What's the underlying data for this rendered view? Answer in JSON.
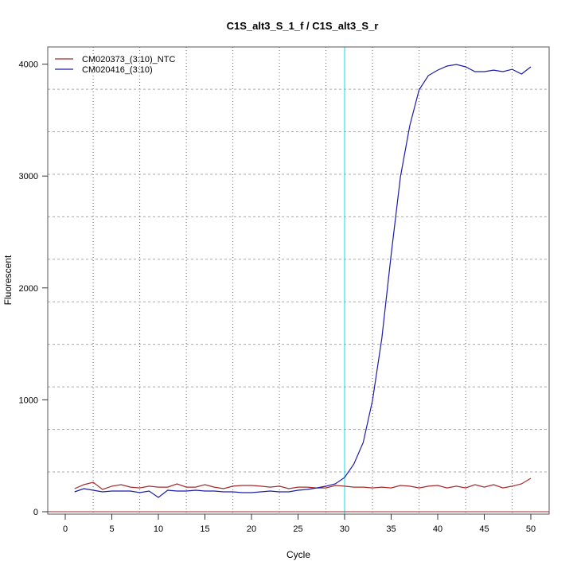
{
  "chart_data": {
    "type": "line",
    "title": "C1S_alt3_S_1_f / C1S_alt3_S_r",
    "xlabel": "Cycle",
    "ylabel": "Fluorescent",
    "xlim": [
      -1.9,
      52.6
    ],
    "ylim": [
      0,
      4150
    ],
    "x_ticks": [
      0,
      5,
      10,
      15,
      20,
      25,
      30,
      35,
      40,
      45,
      50
    ],
    "y_ticks": [
      0,
      1000,
      2000,
      3000,
      4000
    ],
    "grid": true,
    "grid_x": [
      3,
      8,
      13,
      18,
      23,
      28,
      33,
      38,
      43,
      48
    ],
    "grid_y": [
      356,
      736,
      1116,
      1496,
      1876,
      2256,
      2636,
      3016,
      3396,
      3776
    ],
    "threshold_cycle": 30,
    "threshold_color": "#00e5ee",
    "baseline_color": "#a52a2a",
    "legend_position": "top-left",
    "x": [
      1,
      2,
      3,
      4,
      5,
      6,
      7,
      8,
      9,
      10,
      11,
      12,
      13,
      14,
      15,
      16,
      17,
      18,
      19,
      20,
      21,
      22,
      23,
      24,
      25,
      26,
      27,
      28,
      29,
      30,
      31,
      32,
      33,
      34,
      35,
      36,
      37,
      38,
      39,
      40,
      41,
      42,
      43,
      44,
      45,
      46,
      47,
      48,
      49,
      50
    ],
    "series": [
      {
        "name": "CM020373_(3:10)_NTC",
        "color": "#a52a2a",
        "values": [
          206,
          242,
          263,
          199,
          228,
          242,
          220,
          213,
          228,
          220,
          220,
          249,
          220,
          220,
          242,
          220,
          206,
          228,
          235,
          235,
          228,
          220,
          228,
          206,
          220,
          220,
          213,
          213,
          235,
          228,
          220,
          220,
          213,
          220,
          213,
          235,
          228,
          213,
          228,
          235,
          213,
          228,
          213,
          242,
          220,
          242,
          213,
          228,
          249,
          299
        ]
      },
      {
        "name": "CM020416_(3:10)",
        "color": "#1c1caa",
        "values": [
          178,
          206,
          192,
          178,
          185,
          185,
          185,
          171,
          185,
          128,
          192,
          185,
          185,
          192,
          185,
          185,
          178,
          178,
          171,
          171,
          178,
          185,
          178,
          178,
          192,
          199,
          213,
          228,
          249,
          306,
          427,
          619,
          996,
          1550,
          2297,
          2994,
          3450,
          3770,
          3898,
          3947,
          3983,
          3997,
          3976,
          3933,
          3933,
          3947,
          3933,
          3954,
          3912,
          3976
        ]
      }
    ]
  }
}
